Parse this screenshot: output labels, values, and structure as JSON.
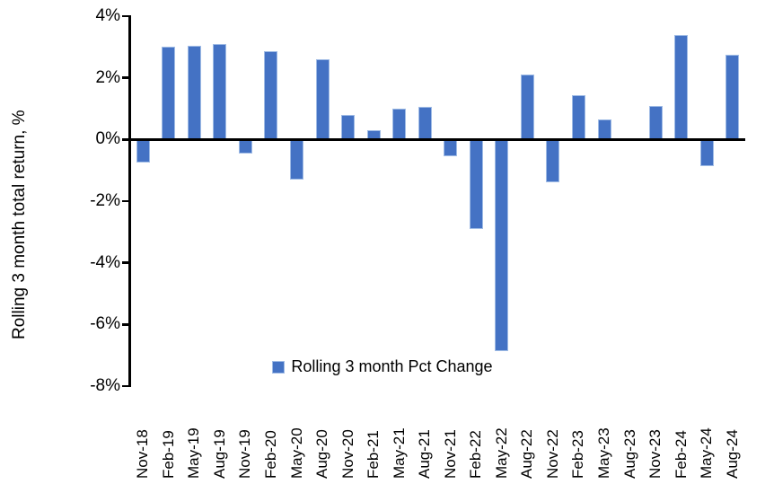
{
  "chart_data": {
    "type": "bar",
    "ylabel": "Rolling 3 month total return, %",
    "legend": "Rolling 3 month Pct Change",
    "legend_position": "bottom-center",
    "grid": false,
    "ylim": [
      -8,
      4
    ],
    "ytick_step": 2,
    "ytick_labels": [
      "4%",
      "2%",
      "0%",
      "-2%",
      "-4%",
      "-6%",
      "-8%"
    ],
    "categories": [
      "Nov-18",
      "Feb-19",
      "May-19",
      "Aug-19",
      "Nov-19",
      "Feb-20",
      "May-20",
      "Aug-20",
      "Nov-20",
      "Feb-21",
      "May-21",
      "Aug-21",
      "Nov-21",
      "Feb-22",
      "May-22",
      "Aug-22",
      "Nov-22",
      "Feb-23",
      "May-23",
      "Aug-23",
      "Nov-23",
      "Feb-24",
      "May-24",
      "Aug-24"
    ],
    "values": [
      -0.75,
      3.0,
      3.05,
      3.1,
      -0.45,
      2.85,
      -1.3,
      2.6,
      0.8,
      0.3,
      1.0,
      1.05,
      -0.55,
      -2.9,
      -6.85,
      2.1,
      -1.4,
      1.45,
      0.65,
      0,
      1.1,
      3.4,
      -0.85,
      2.75
    ],
    "bar_color": "#4472C4",
    "bar_border_color": "#9FBBE5",
    "axis_color": "#000000"
  }
}
